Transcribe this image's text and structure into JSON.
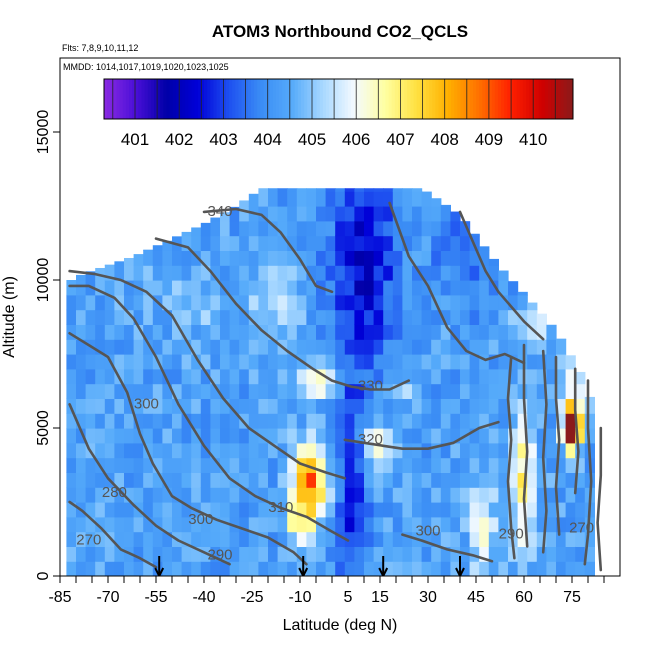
{
  "chart_data": {
    "type": "heatmap",
    "title": "ATOM3 Northbound CO2_QCLS",
    "subtitle_flights": "Flts: 7,8,9,10,11,12",
    "subtitle_dates": "MMDD: 1014,1017,1019,1020,1023,1025",
    "xlabel": "Latitude (deg N)",
    "ylabel": "Altitude (m)",
    "xlim": [
      -85,
      90
    ],
    "ylim": [
      0,
      17500
    ],
    "x_tick_labels": [
      "-85",
      "-70",
      "-55",
      "-40",
      "-25",
      "-10",
      "5",
      "15",
      "30",
      "45",
      "60",
      "75"
    ],
    "x_tick_values": [
      -85,
      -70,
      -55,
      -40,
      -25,
      -10,
      5,
      15,
      30,
      45,
      60,
      75
    ],
    "y_tick_labels": [
      "0",
      "5000",
      "10000",
      "15000"
    ],
    "y_tick_values": [
      0,
      5000,
      10000,
      15000
    ],
    "colorbar": {
      "min": 400.3,
      "max": 410.9,
      "tick_labels": [
        "401",
        "402",
        "403",
        "404",
        "405",
        "406",
        "407",
        "408",
        "409",
        "410"
      ],
      "tick_values": [
        401,
        402,
        403,
        404,
        405,
        406,
        407,
        408,
        409,
        410
      ],
      "colors": [
        "#8B2BE2",
        "#4B0FD8",
        "#0000A8",
        "#0000D8",
        "#1E50F0",
        "#3A8CF5",
        "#55AAFA",
        "#A8D8FF",
        "#F4FAFF",
        "#FFFFA0",
        "#FFE040",
        "#FFB000",
        "#FF7000",
        "#FF2000",
        "#D00000",
        "#8B1A1A"
      ]
    },
    "contour_labels": [
      {
        "text": "340",
        "lat": -35,
        "alt": 12300
      },
      {
        "text": "330",
        "lat": 12,
        "alt": 6400
      },
      {
        "text": "320",
        "lat": 12,
        "alt": 4600
      },
      {
        "text": "310",
        "lat": -16,
        "alt": 2300
      },
      {
        "text": "300",
        "lat": -58,
        "alt": 5800
      },
      {
        "text": "300",
        "lat": -41,
        "alt": 1900
      },
      {
        "text": "300",
        "lat": 30,
        "alt": 1500
      },
      {
        "text": "290",
        "lat": -35,
        "alt": 700
      },
      {
        "text": "290",
        "lat": 56,
        "alt": 1400
      },
      {
        "text": "280",
        "lat": -68,
        "alt": 2800
      },
      {
        "text": "270",
        "lat": -76,
        "alt": 1200
      },
      {
        "text": "270",
        "lat": 78,
        "alt": 1600
      }
    ],
    "arrow_latitudes": [
      -54,
      -9,
      16,
      40
    ]
  }
}
